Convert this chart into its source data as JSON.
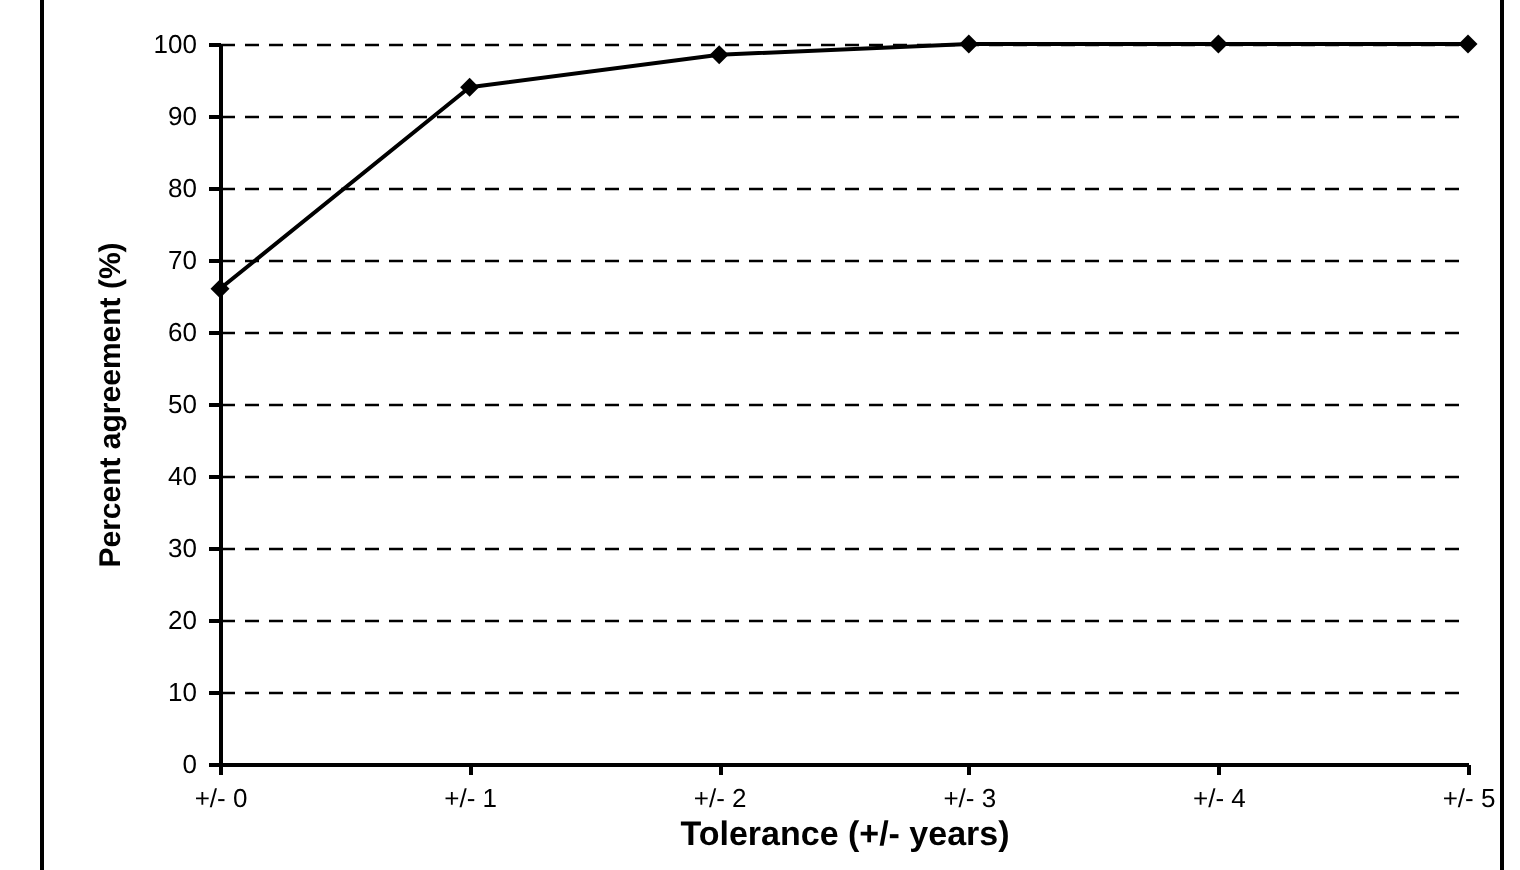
{
  "chart_data": {
    "type": "line",
    "xlabel": "Tolerance (+/- years)",
    "ylabel": "Percent agreement (%)",
    "categories": [
      "+/- 0",
      "+/- 1",
      "+/- 2",
      "+/- 3",
      "+/- 4",
      "+/- 5"
    ],
    "series": [
      {
        "color": "#000000",
        "values": [
          66,
          94,
          98.5,
          100,
          100,
          100
        ]
      }
    ],
    "ylim": [
      0,
      100
    ],
    "yticks": [
      0,
      10,
      20,
      30,
      40,
      50,
      60,
      70,
      80,
      90,
      100
    ],
    "grid": "y",
    "marker": "diamond",
    "line_style": "solid"
  }
}
